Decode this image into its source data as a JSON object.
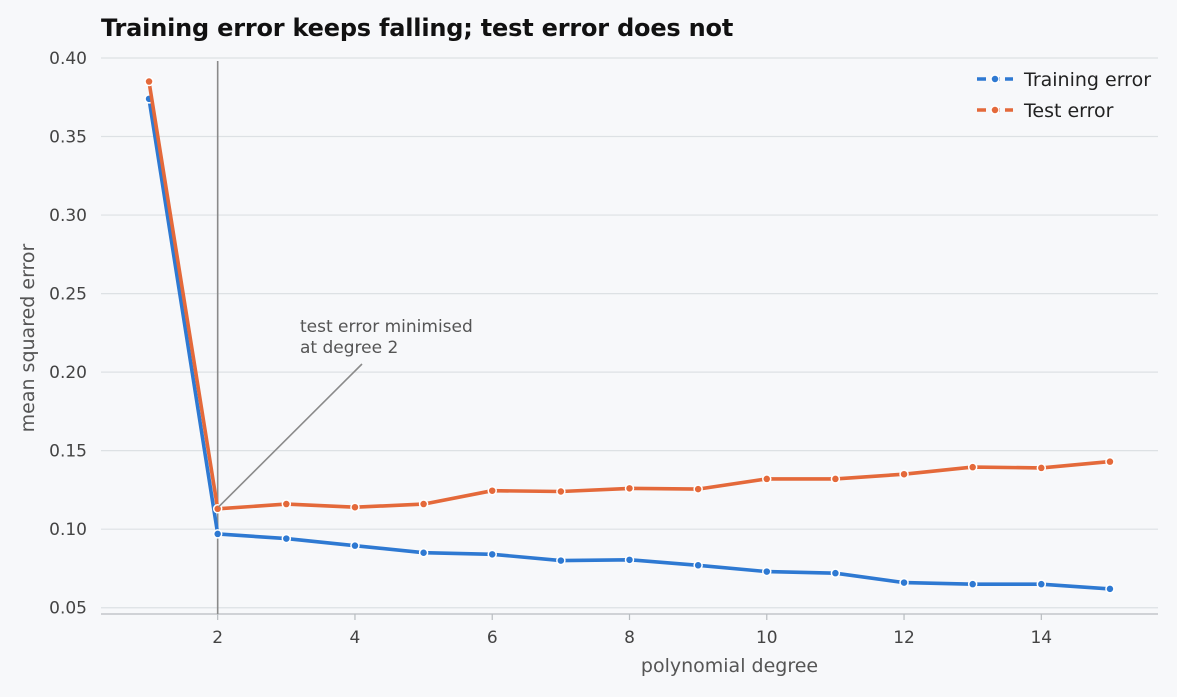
{
  "chart_data": {
    "type": "line",
    "title": "Training error keeps falling; test error does not",
    "xlabel": "polynomial degree",
    "ylabel": "mean squared error",
    "x": [
      1,
      2,
      3,
      4,
      5,
      6,
      7,
      8,
      9,
      10,
      11,
      12,
      13,
      14,
      15
    ],
    "xlim": [
      0.3,
      15.7
    ],
    "ylim": [
      0.046,
      0.4
    ],
    "xticks": [
      2,
      4,
      6,
      8,
      10,
      12,
      14
    ],
    "yticks": [
      0.05,
      0.1,
      0.15,
      0.2,
      0.25,
      0.3,
      0.35,
      0.4
    ],
    "ytick_labels": [
      "0.05",
      "0.10",
      "0.15",
      "0.20",
      "0.25",
      "0.30",
      "0.35",
      "0.40"
    ],
    "grid": "horizontal",
    "legend_position": "top-right",
    "series": [
      {
        "name": "Training error",
        "color": "#2e79d2",
        "values": [
          0.374,
          0.097,
          0.094,
          0.0895,
          0.085,
          0.084,
          0.08,
          0.0805,
          0.077,
          0.073,
          0.072,
          0.066,
          0.065,
          0.065,
          0.062
        ]
      },
      {
        "name": "Test error",
        "color": "#e4693a",
        "values": [
          0.385,
          0.113,
          0.116,
          0.114,
          0.116,
          0.1245,
          0.124,
          0.126,
          0.1255,
          0.132,
          0.132,
          0.135,
          0.1395,
          0.139,
          0.143
        ]
      }
    ],
    "vline": {
      "x": 2,
      "color": "#8a8a8a"
    },
    "annotation": {
      "lines": [
        "test error minimised",
        "at degree 2"
      ],
      "point": {
        "x": 2,
        "y": 0.113
      }
    }
  }
}
